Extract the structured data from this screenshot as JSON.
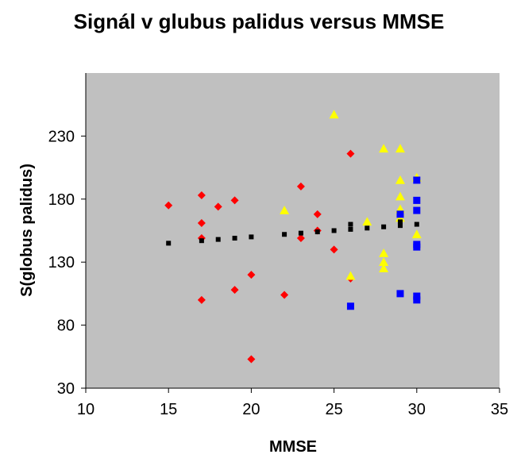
{
  "chart_data": {
    "type": "scatter",
    "title": "Signál v glubus palidus versus MMSE",
    "xlabel": "MMSE",
    "ylabel": "S(globus palidus)",
    "xlim": [
      10,
      35
    ],
    "ylim": [
      30,
      280
    ],
    "x_ticks": [
      "10",
      "15",
      "20",
      "25",
      "30",
      "35"
    ],
    "y_ticks": [
      "30",
      "80",
      "130",
      "180",
      "230"
    ],
    "x_tick_values": [
      10,
      15,
      20,
      25,
      30,
      35
    ],
    "y_tick_values": [
      30,
      80,
      130,
      180,
      230
    ],
    "grid": false,
    "legend": "none",
    "plot_background": "#c0c0c0",
    "series": [
      {
        "marker": "diamond",
        "color": "#ff0000",
        "points": [
          [
            15,
            175
          ],
          [
            17,
            183
          ],
          [
            17,
            161
          ],
          [
            17,
            149
          ],
          [
            17,
            100
          ],
          [
            18,
            174
          ],
          [
            19,
            179
          ],
          [
            19,
            108
          ],
          [
            20,
            120
          ],
          [
            20,
            53
          ],
          [
            22,
            104
          ],
          [
            23,
            190
          ],
          [
            23,
            149
          ],
          [
            24,
            168
          ],
          [
            24,
            155
          ],
          [
            25,
            140
          ],
          [
            26,
            216
          ],
          [
            26,
            117
          ]
        ]
      },
      {
        "marker": "triangle",
        "color": "#ffff00",
        "points": [
          [
            22,
            171
          ],
          [
            25,
            247
          ],
          [
            26,
            119
          ],
          [
            27,
            162
          ],
          [
            28,
            220
          ],
          [
            28,
            137
          ],
          [
            28,
            130
          ],
          [
            28,
            125
          ],
          [
            29,
            220
          ],
          [
            29,
            195
          ],
          [
            29,
            182
          ],
          [
            29,
            172
          ],
          [
            29,
            165
          ],
          [
            30,
            197
          ],
          [
            30,
            152
          ]
        ]
      },
      {
        "marker": "square",
        "color": "#0000ff",
        "points": [
          [
            26,
            95
          ],
          [
            29,
            168
          ],
          [
            29,
            105
          ],
          [
            30,
            195
          ],
          [
            30,
            179
          ],
          [
            30,
            171
          ],
          [
            30,
            144
          ],
          [
            30,
            142
          ],
          [
            30,
            103
          ],
          [
            30,
            100
          ]
        ]
      },
      {
        "marker": "small-square",
        "color": "#000000",
        "points": [
          [
            15,
            145
          ],
          [
            17,
            147
          ],
          [
            18,
            148
          ],
          [
            19,
            149
          ],
          [
            20,
            150
          ],
          [
            22,
            152
          ],
          [
            23,
            153
          ],
          [
            24,
            154
          ],
          [
            25,
            155
          ],
          [
            26,
            156
          ],
          [
            26,
            160
          ],
          [
            27,
            157
          ],
          [
            28,
            158
          ],
          [
            29,
            159
          ],
          [
            29,
            162
          ],
          [
            30,
            160
          ]
        ]
      }
    ]
  }
}
